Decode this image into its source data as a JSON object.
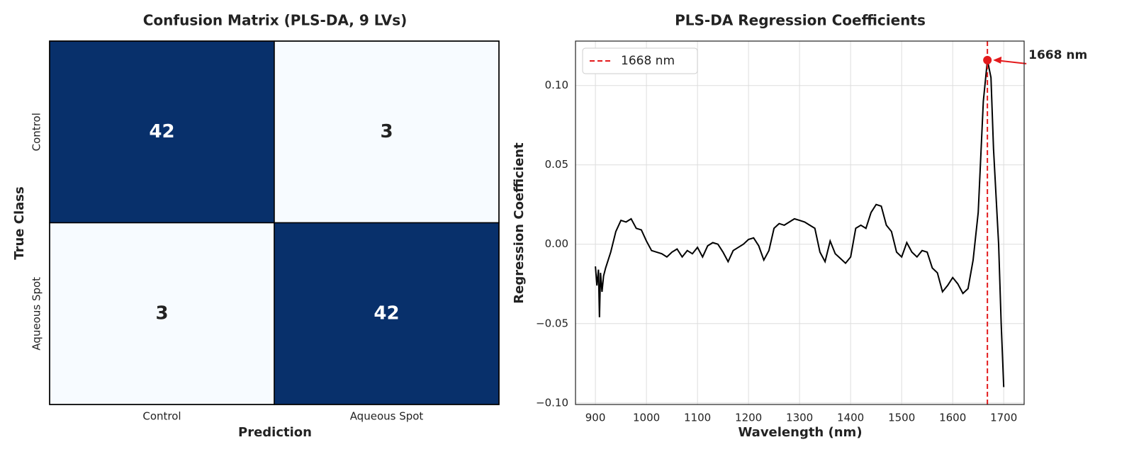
{
  "chart_data": [
    {
      "type": "heatmap",
      "title": "Confusion Matrix (PLS-DA, 9 LVs)",
      "x_label": "Prediction",
      "y_label": "True Class",
      "x_categories": [
        "Control",
        "Aqueous Spot"
      ],
      "y_categories": [
        "Control",
        "Aqueous Spot"
      ],
      "values": [
        [
          42,
          3
        ],
        [
          3,
          42
        ]
      ],
      "colors": [
        "#f7fbff",
        "#08306b"
      ]
    },
    {
      "type": "line",
      "title": "PLS-DA Regression Coefficients",
      "x_label": "Wavelength (nm)",
      "y_label": "Regression Coefficient",
      "color": "#000000",
      "grid": true,
      "x": [
        900,
        903,
        906,
        908,
        910,
        913,
        916,
        920,
        930,
        940,
        950,
        960,
        970,
        980,
        990,
        1000,
        1010,
        1020,
        1030,
        1040,
        1050,
        1060,
        1070,
        1080,
        1090,
        1100,
        1110,
        1120,
        1130,
        1140,
        1150,
        1160,
        1170,
        1180,
        1190,
        1200,
        1210,
        1220,
        1230,
        1240,
        1250,
        1260,
        1270,
        1280,
        1290,
        1300,
        1310,
        1320,
        1330,
        1340,
        1350,
        1360,
        1370,
        1380,
        1390,
        1400,
        1410,
        1420,
        1430,
        1440,
        1450,
        1460,
        1470,
        1480,
        1490,
        1500,
        1510,
        1520,
        1530,
        1540,
        1550,
        1560,
        1570,
        1580,
        1590,
        1600,
        1610,
        1620,
        1630,
        1640,
        1650,
        1660,
        1668,
        1675,
        1680,
        1690,
        1695,
        1700
      ],
      "values": [
        -0.014,
        -0.026,
        -0.016,
        -0.046,
        -0.018,
        -0.03,
        -0.02,
        -0.015,
        -0.005,
        0.008,
        0.015,
        0.014,
        0.016,
        0.01,
        0.009,
        0.002,
        -0.004,
        -0.005,
        -0.006,
        -0.008,
        -0.005,
        -0.003,
        -0.008,
        -0.004,
        -0.006,
        -0.002,
        -0.008,
        -0.001,
        0.001,
        0.0,
        -0.005,
        -0.011,
        -0.004,
        -0.002,
        0.0,
        0.003,
        0.004,
        -0.001,
        -0.01,
        -0.004,
        0.01,
        0.013,
        0.012,
        0.014,
        0.016,
        0.015,
        0.014,
        0.012,
        0.01,
        -0.005,
        -0.011,
        0.002,
        -0.006,
        -0.009,
        -0.012,
        -0.008,
        0.01,
        0.012,
        0.01,
        0.02,
        0.025,
        0.024,
        0.012,
        0.008,
        -0.005,
        -0.008,
        0.001,
        -0.005,
        -0.008,
        -0.004,
        -0.005,
        -0.015,
        -0.018,
        -0.03,
        -0.026,
        -0.021,
        -0.025,
        -0.031,
        -0.028,
        -0.01,
        0.02,
        0.09,
        0.116,
        0.105,
        0.06,
        0.0,
        -0.05,
        -0.09
      ],
      "xlim": [
        861,
        1740
      ],
      "ylim": [
        -0.101,
        0.128
      ],
      "xticks": [
        900,
        1000,
        1100,
        1200,
        1300,
        1400,
        1500,
        1600,
        1700
      ],
      "yticks": [
        {
          "value": -0.1,
          "label": "−0.10"
        },
        {
          "value": -0.05,
          "label": "−0.05"
        },
        {
          "value": 0,
          "label": "0.00"
        },
        {
          "value": 0.05,
          "label": "0.05"
        },
        {
          "value": 0.1,
          "label": "0.10"
        }
      ],
      "vline": {
        "x": 1668,
        "name": "1668 nm",
        "color": "#e31a1c"
      },
      "annotation": {
        "text": "1668 nm",
        "x": 1668,
        "y": 0.116
      },
      "legend": "upper left"
    }
  ]
}
